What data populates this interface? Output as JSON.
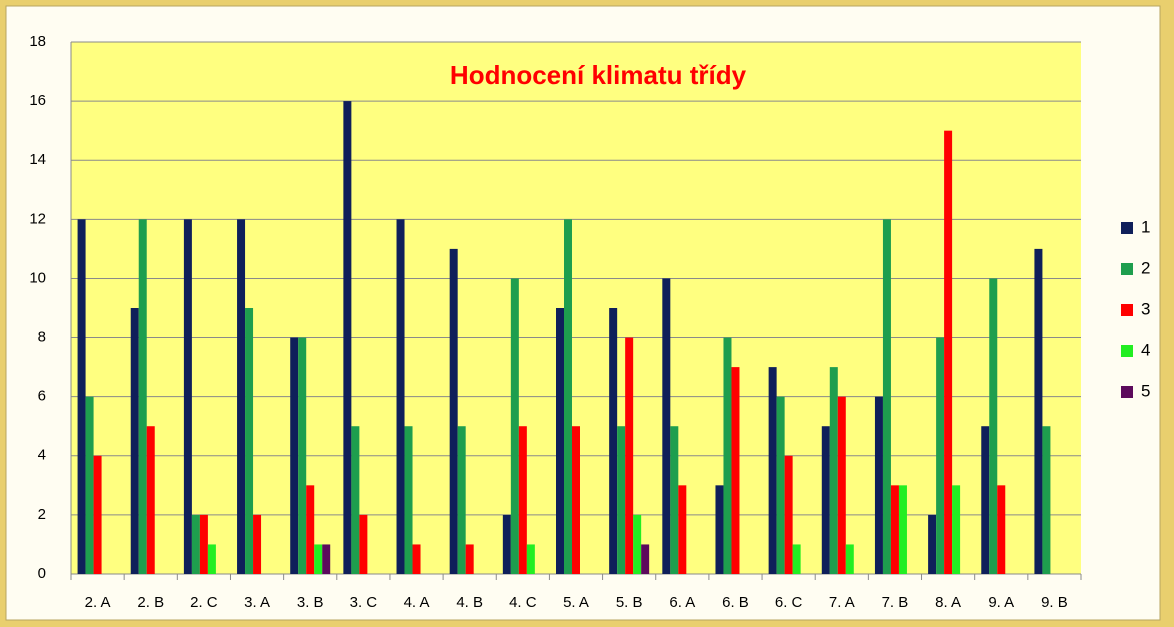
{
  "chart_data": {
    "type": "bar",
    "title": "Hodnocení klimatu třídy",
    "categories": [
      "2. A",
      "2. B",
      "2. C",
      "3. A",
      "3. B",
      "3. C",
      "4. A",
      "4. B",
      "4. C",
      "5. A",
      "5. B",
      "6. A",
      "6. B",
      "6. C",
      "7. A",
      "7. B",
      "8. A",
      "9. A",
      "9. B"
    ],
    "series": [
      {
        "name": "1",
        "color": "#0f1f5a",
        "values": [
          12,
          9,
          12,
          12,
          8,
          16,
          12,
          11,
          2,
          9,
          9,
          10,
          3,
          7,
          5,
          6,
          2,
          5,
          11
        ]
      },
      {
        "name": "2",
        "color": "#1e9e4e",
        "values": [
          6,
          12,
          2,
          9,
          8,
          5,
          5,
          5,
          10,
          12,
          5,
          5,
          8,
          6,
          7,
          12,
          8,
          10,
          5
        ]
      },
      {
        "name": "3",
        "color": "#ff0000",
        "values": [
          4,
          5,
          2,
          2,
          3,
          2,
          1,
          1,
          5,
          5,
          8,
          3,
          7,
          4,
          6,
          3,
          15,
          3,
          0
        ]
      },
      {
        "name": "4",
        "color": "#22ee22",
        "values": [
          0,
          0,
          1,
          0,
          1,
          0,
          0,
          0,
          1,
          0,
          2,
          0,
          0,
          1,
          1,
          3,
          3,
          0,
          0
        ]
      },
      {
        "name": "5",
        "color": "#5c0a5c",
        "values": [
          0,
          0,
          0,
          0,
          1,
          0,
          0,
          0,
          0,
          0,
          1,
          0,
          0,
          0,
          0,
          0,
          0,
          0,
          0
        ]
      }
    ],
    "ylim": [
      0,
      18
    ],
    "yticks": [
      0,
      2,
      4,
      6,
      8,
      10,
      12,
      14,
      16,
      18
    ],
    "grid": true,
    "legend": "right"
  }
}
